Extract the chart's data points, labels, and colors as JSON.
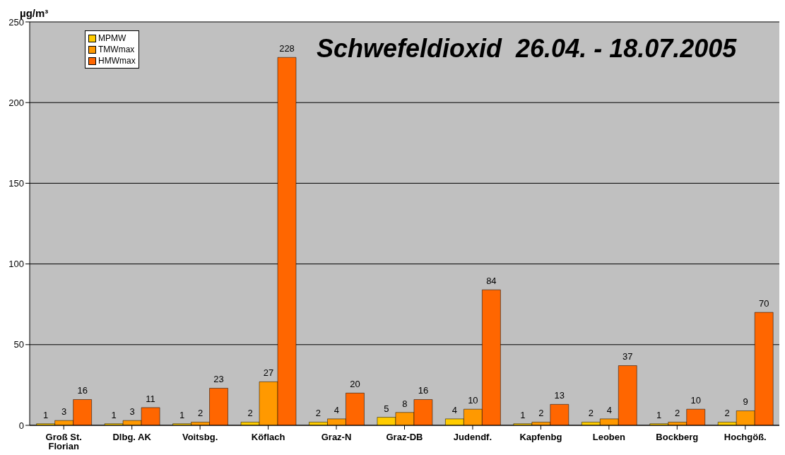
{
  "chart_data": {
    "type": "bar",
    "title": "Schwefeldioxid  26.04. - 18.07.2005",
    "ylabel": "µg/m³",
    "categories": [
      "Groß St. Florian",
      "Dlbg. AK",
      "Voitsbg.",
      "Köflach",
      "Graz-N",
      "Graz-DB",
      "Judendf.",
      "Kapfenbg",
      "Leoben",
      "Bockberg",
      "Hochgöß."
    ],
    "series": [
      {
        "name": "MPMW",
        "color": "#ffcc00",
        "values": [
          1,
          1,
          1,
          2,
          2,
          5,
          4,
          1,
          2,
          1,
          2
        ]
      },
      {
        "name": "TMWmax",
        "color": "#ff9900",
        "values": [
          3,
          3,
          2,
          27,
          4,
          8,
          10,
          2,
          4,
          2,
          9
        ]
      },
      {
        "name": "HMWmax",
        "color": "#ff6600",
        "values": [
          16,
          11,
          23,
          228,
          20,
          16,
          84,
          13,
          37,
          10,
          70
        ]
      }
    ],
    "ylim": [
      0,
      250
    ],
    "yticks": [
      0,
      50,
      100,
      150,
      200,
      250
    ],
    "grid": "y",
    "legend": "top left",
    "data_labels": true
  }
}
